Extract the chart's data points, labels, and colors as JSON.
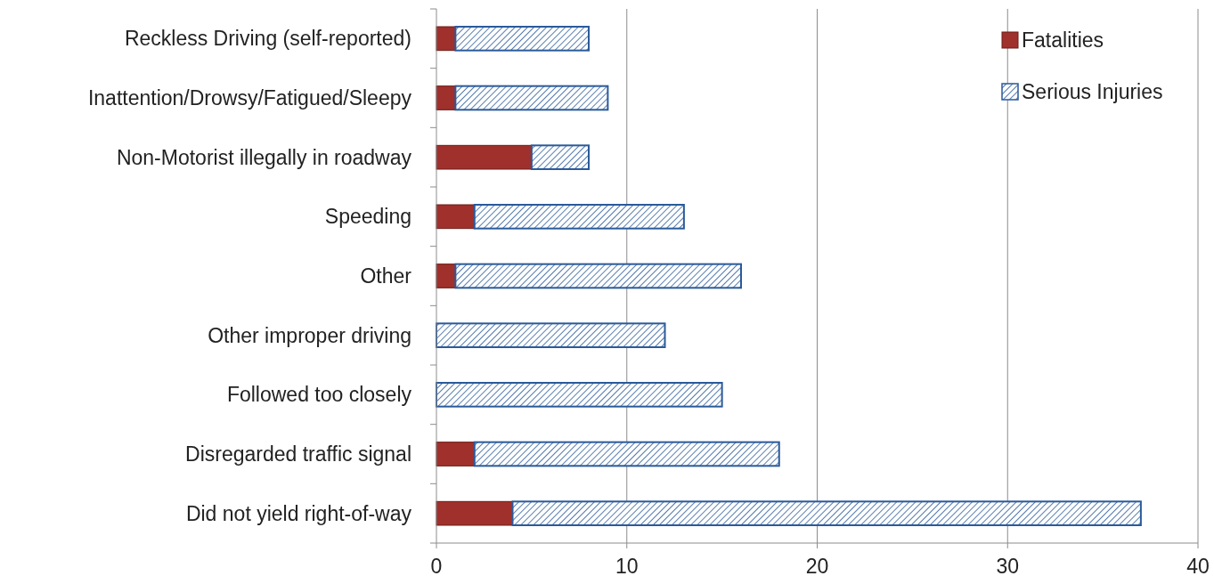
{
  "chart_data": {
    "type": "bar",
    "orientation": "horizontal",
    "stacked": true,
    "categories": [
      "Reckless Driving (self-reported)",
      "Inattention/Drowsy/Fatigued/Sleepy",
      "Non-Motorist illegally in roadway",
      "Speeding",
      "Other",
      "Other improper driving",
      "Followed too closely",
      "Disregarded traffic signal",
      "Did not yield right-of-way"
    ],
    "series": [
      {
        "name": "Fatalities",
        "color": "#a0302c",
        "values": [
          1,
          1,
          5,
          2,
          1,
          0,
          0,
          2,
          4
        ]
      },
      {
        "name": "Serious Injuries",
        "color": "#2a5a9a",
        "values": [
          7,
          8,
          3,
          11,
          15,
          12,
          15,
          16,
          33
        ]
      }
    ],
    "xlim": [
      0,
      40
    ],
    "xticks": [
      0,
      10,
      20,
      30,
      40
    ],
    "grid": "x",
    "legend": "top right"
  }
}
